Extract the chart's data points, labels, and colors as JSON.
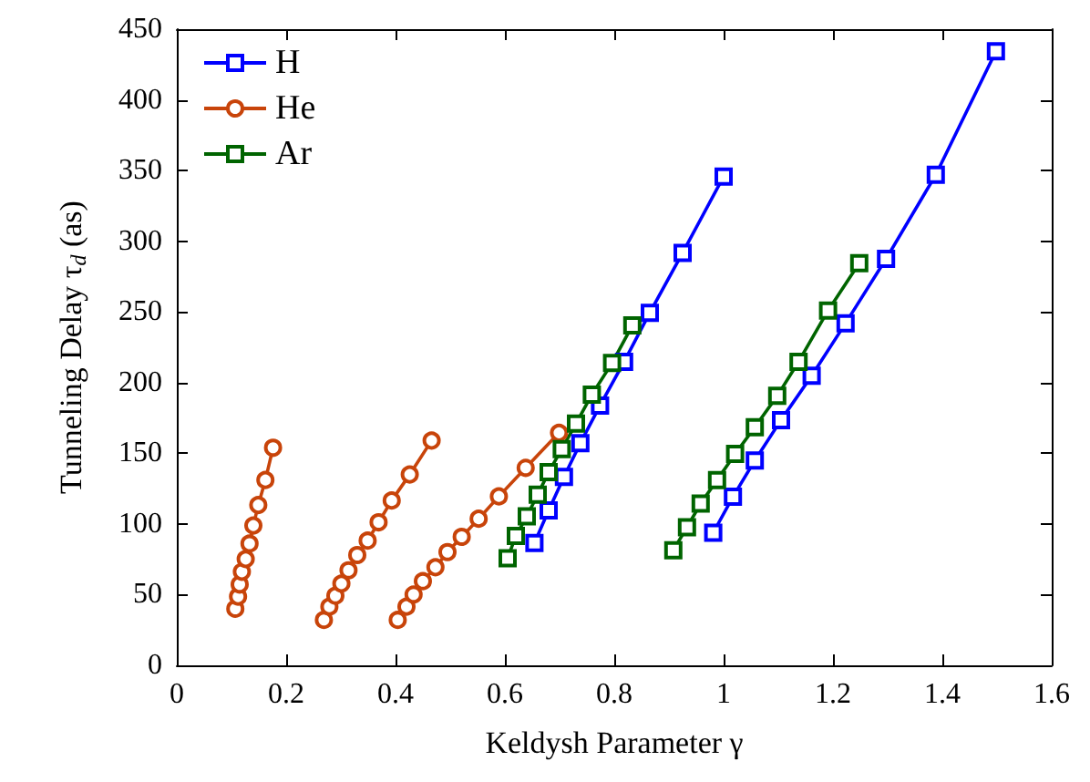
{
  "chart_data": {
    "type": "line",
    "xlabel": "Keldysh Parameter γ",
    "ylabel": "Tunneling Delay τ$_{d}$ (as)",
    "xlim": [
      0,
      1.6
    ],
    "xticks": [
      0,
      0.2,
      0.4,
      0.6,
      0.8,
      1,
      1.2,
      1.4,
      1.6
    ],
    "ylim": [
      0,
      450
    ],
    "yticks": [
      0,
      50,
      100,
      150,
      200,
      250,
      300,
      350,
      400,
      450
    ],
    "grid": false,
    "legend": "top left",
    "line_style": "solid",
    "series": [
      {
        "name": "H",
        "color": "#0000ff",
        "marker": "square",
        "x": [
          0.654,
          0.68,
          0.708,
          0.738,
          0.774,
          0.818,
          0.865,
          0.925,
          1.0
        ],
        "values": [
          86.5,
          109.6,
          133.3,
          157.2,
          183.8,
          214.7,
          249.4,
          291.8,
          345.8
        ]
      },
      {
        "name": "He",
        "color": "#c8440a",
        "marker": "circle",
        "x": [
          0.404,
          0.42,
          0.433,
          0.45,
          0.473,
          0.495,
          0.521,
          0.552,
          0.589,
          0.638,
          0.699
        ],
        "values": [
          32.1,
          41.5,
          50.1,
          59.5,
          69.4,
          80.1,
          90.9,
          103.7,
          119.5,
          139.7,
          164.5
        ]
      },
      {
        "name": "Ar",
        "color": "#006400",
        "marker": "square",
        "x": [
          0.605,
          0.62,
          0.64,
          0.66,
          0.68,
          0.704,
          0.73,
          0.759,
          0.796,
          0.833
        ],
        "values": [
          75.8,
          91.6,
          105.4,
          120.8,
          136.6,
          153,
          171,
          191.5,
          213.8,
          240.4
        ]
      },
      {
        "color": "#0000ff",
        "marker": "square",
        "x": [
          0.981,
          1.017,
          1.057,
          1.105,
          1.161,
          1.223,
          1.297,
          1.388,
          1.498
        ],
        "values": [
          93.8,
          119.2,
          144.9,
          173.5,
          204.8,
          242,
          287.5,
          347,
          434.4
        ]
      },
      {
        "color": "#c8440a",
        "marker": "circle",
        "x": [
          0.269,
          0.279,
          0.29,
          0.301,
          0.314,
          0.33,
          0.349,
          0.369,
          0.393,
          0.426,
          0.466
        ],
        "values": [
          32.1,
          41.5,
          49.2,
          57.8,
          67.2,
          78,
          88.2,
          101.2,
          116.6,
          135,
          159
        ]
      },
      {
        "color": "#c8440a",
        "marker": "circle",
        "x": [
          0.107,
          0.112,
          0.115,
          0.119,
          0.126,
          0.133,
          0.14,
          0.149,
          0.162,
          0.176
        ],
        "values": [
          40,
          48.6,
          57.2,
          66.2,
          75.2,
          86.1,
          98.9,
          113.4,
          131.1,
          153.9
        ]
      },
      {
        "color": "#006400",
        "marker": "square",
        "x": [
          0.908,
          0.933,
          0.958,
          0.988,
          1.021,
          1.057,
          1.098,
          1.137,
          1.191,
          1.248
        ],
        "values": [
          81.4,
          97.7,
          114.4,
          131.1,
          149.5,
          168.4,
          190.6,
          214.7,
          251,
          284.4
        ]
      }
    ]
  }
}
